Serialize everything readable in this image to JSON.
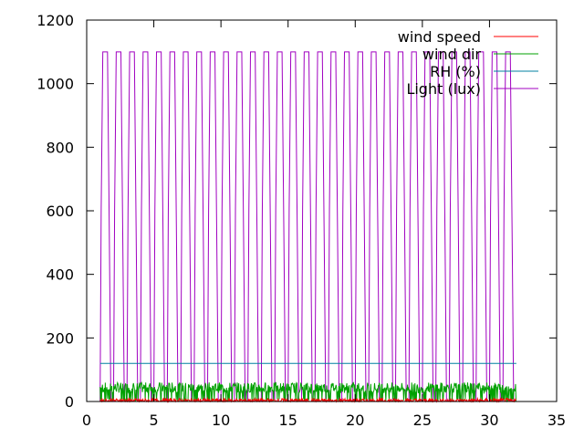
{
  "chart_data": {
    "type": "line",
    "title": "",
    "xlabel": "",
    "ylabel": "",
    "xlim": [
      0,
      35
    ],
    "ylim": [
      0,
      1200
    ],
    "xticks": [
      0,
      5,
      10,
      15,
      20,
      25,
      30,
      35
    ],
    "yticks": [
      0,
      200,
      400,
      600,
      800,
      1000,
      1200
    ],
    "xtick_labels": [
      "0",
      "5",
      "10",
      "15",
      "20",
      "25",
      "30",
      "35"
    ],
    "ytick_labels": [
      "0",
      "200",
      "400",
      "600",
      "800",
      "1000",
      "1200"
    ],
    "grid": false,
    "legend_position": "top-right",
    "series": [
      {
        "name": "wind speed",
        "color": "#ff0000",
        "pattern": "noise",
        "x_range": [
          1,
          32
        ],
        "value_range": [
          0,
          10
        ]
      },
      {
        "name": "wind dir",
        "color": "#00a000",
        "pattern": "noise",
        "x_range": [
          1,
          32
        ],
        "value_range": [
          0,
          60
        ]
      },
      {
        "name": "RH (%)",
        "color": "#0080a0",
        "pattern": "constant",
        "x_range": [
          1,
          32
        ],
        "value": 120
      },
      {
        "name": "Light (lux)",
        "color": "#a000c0",
        "pattern": "daily-pulse",
        "x_range": [
          1,
          31.8
        ],
        "period": 1,
        "value_range": [
          0,
          1100
        ]
      }
    ]
  }
}
